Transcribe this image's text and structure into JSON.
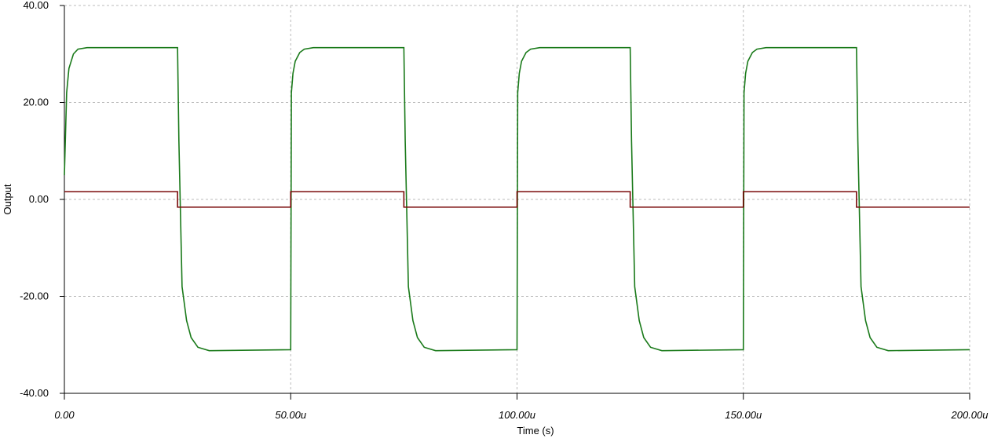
{
  "chart_data": {
    "type": "line",
    "x_label": "Time (s)",
    "y_label": "Output",
    "xlim": [
      0,
      0.0002
    ],
    "ylim": [
      -40,
      40
    ],
    "xticks": [
      {
        "value": 0,
        "label": "0.00"
      },
      {
        "value": 5e-05,
        "label": "50.00u"
      },
      {
        "value": 0.0001,
        "label": "100.00u"
      },
      {
        "value": 0.00015,
        "label": "150.00u"
      },
      {
        "value": 0.0002,
        "label": "200.00u"
      }
    ],
    "yticks": [
      {
        "value": 40,
        "label": "40.00"
      },
      {
        "value": 20,
        "label": "20.00"
      },
      {
        "value": 0,
        "label": "0.00"
      },
      {
        "value": -20,
        "label": "-20.00"
      },
      {
        "value": -40,
        "label": "-40.00"
      }
    ],
    "grid": true,
    "series": [
      {
        "color": "#1a7a1a",
        "x": [
          0,
          5e-07,
          1e-06,
          2e-06,
          3e-06,
          5e-06,
          2.5e-05,
          2.53e-05,
          2.6e-05,
          2.7e-05,
          2.8e-05,
          2.95e-05,
          3.2e-05,
          5e-05,
          5.015e-05,
          5.05e-05,
          5.1e-05,
          5.2e-05,
          5.3e-05,
          5.5e-05,
          7.5e-05,
          7.53e-05,
          7.6e-05,
          7.7e-05,
          7.8e-05,
          7.95e-05,
          8.2e-05,
          0.0001,
          0.00010015,
          0.0001005,
          0.000101,
          0.000102,
          0.000103,
          0.000105,
          0.000125,
          0.0001253,
          0.000126,
          0.000127,
          0.000128,
          0.0001295,
          0.000132,
          0.00015,
          0.00015015,
          0.0001505,
          0.000151,
          0.000152,
          0.000153,
          0.000155,
          0.000175,
          0.0001753,
          0.000176,
          0.000177,
          0.000178,
          0.0001795,
          0.000182,
          0.0002
        ],
        "values": [
          5,
          22,
          27,
          30,
          31,
          31.3,
          31.3,
          12,
          -18,
          -25,
          -28.5,
          -30.5,
          -31.2,
          -31,
          22,
          26,
          28.5,
          30.3,
          31,
          31.3,
          31.3,
          12,
          -18,
          -25,
          -28.5,
          -30.5,
          -31.2,
          -31,
          22,
          26,
          28.5,
          30.3,
          31,
          31.3,
          31.3,
          12,
          -18,
          -25,
          -28.5,
          -30.5,
          -31.2,
          -31,
          22,
          26,
          28.5,
          30.3,
          31,
          31.3,
          31.3,
          12,
          -18,
          -25,
          -28.5,
          -30.5,
          -31.2,
          -31
        ]
      },
      {
        "color": "#7a0a0a",
        "x": [
          0,
          2.5e-05,
          2.5e-05,
          5e-05,
          5e-05,
          7.5e-05,
          7.5e-05,
          0.0001,
          0.0001,
          0.000125,
          0.000125,
          0.00015,
          0.00015,
          0.000175,
          0.000175,
          0.0002
        ],
        "values": [
          1.6,
          1.6,
          -1.6,
          -1.6,
          1.6,
          1.6,
          -1.6,
          -1.6,
          1.6,
          1.6,
          -1.6,
          -1.6,
          1.6,
          1.6,
          -1.6,
          -1.6
        ]
      }
    ]
  }
}
